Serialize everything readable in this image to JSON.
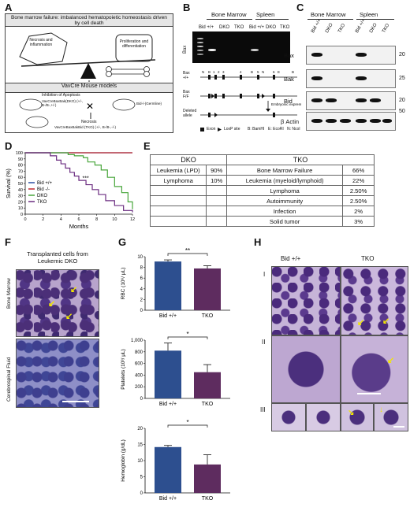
{
  "panels": {
    "A": "A",
    "B": "B",
    "C": "C",
    "D": "D",
    "E": "E",
    "F": "F",
    "G": "G",
    "H": "H"
  },
  "panelA": {
    "header": "Bone marrow failure: imbalanced hematopoietic homeostasis driven by cell death",
    "left_weight": "Necrosis and inflammation",
    "right_weight": "Proliferation and differentiation",
    "models_title": "VavCre Mouse models",
    "inhibition": "Inhibition of Apoptosis",
    "dko_model": "VavCreBaxBak(DKO) (+/-, B-/B-,+/-)",
    "germline": "Bid-/-(Germline)",
    "necrosis": "Necrosis",
    "tko_model": "VavCreBaxBakBid (TKO) (+/-, B-/B-,-/-)"
  },
  "panelB": {
    "bone_marrow": "Bone Marrow",
    "spleen": "Spleen",
    "lanes": [
      "Bid +/+",
      "DKO",
      "TKO",
      "Bid +/+",
      "DKO",
      "TKO"
    ],
    "gel_label": "Bax",
    "row1": "Bax +/+",
    "row2": "Bax F/F",
    "row3": "Deleted allele",
    "site_labels": [
      "N",
      "B",
      "1",
      "2",
      "3",
      "B",
      "4",
      "E",
      "B",
      "5",
      "N",
      "6",
      "E",
      "B"
    ],
    "embryonic": "Embryonic expression of Vav",
    "legend_exon": "Exon",
    "legend_loxp": "LoxP site",
    "legend_b": "B: BamHI",
    "legend_e": "E: EcoRI",
    "legend_n": "N: NcoI"
  },
  "panelC": {
    "bone_marrow": "Bone Marrow",
    "spleen": "Spleen",
    "lanes": [
      "Bid +/+",
      "DKO",
      "TKO",
      "Bid +/+",
      "DKO",
      "TKO"
    ],
    "blots": [
      {
        "name": "Bax",
        "marker": "20"
      },
      {
        "name": "Bak",
        "marker": "25"
      },
      {
        "name": "Bid",
        "marker": "20"
      },
      {
        "name": "β Actin",
        "marker": "50"
      }
    ]
  },
  "chart_data": [
    {
      "panel": "D",
      "type": "line",
      "xlabel": "Months",
      "ylabel": "Survival (%)",
      "xlim": [
        0,
        12
      ],
      "ylim": [
        0,
        100
      ],
      "xticks": [
        "0",
        "2",
        "4",
        "6",
        "8",
        "10",
        "12"
      ],
      "yticks": [
        "0",
        "10",
        "20",
        "30",
        "40",
        "50",
        "60",
        "70",
        "80",
        "90",
        "100"
      ],
      "significance": "***",
      "legend_position": "bottom-left",
      "series": [
        {
          "name": "Bid +/+",
          "color": "#2a4fa3",
          "x": [
            0,
            12
          ],
          "y": [
            100,
            100
          ]
        },
        {
          "name": "Bid -/-",
          "color": "#c0272d",
          "x": [
            0,
            12
          ],
          "y": [
            100,
            100
          ]
        },
        {
          "name": "DKO",
          "color": "#48a63b",
          "x": [
            0,
            4,
            4.8,
            5.5,
            6.5,
            7,
            7.8,
            8.5,
            9.2,
            10,
            10.8,
            11.5,
            12
          ],
          "y": [
            100,
            100,
            97,
            95,
            92,
            85,
            80,
            72,
            60,
            45,
            35,
            20,
            8
          ]
        },
        {
          "name": "TKO",
          "color": "#6b2c80",
          "x": [
            0,
            2.2,
            2.8,
            3.5,
            4,
            4.5,
            5,
            5.5,
            6,
            6.8,
            7.5,
            8.2,
            9,
            10,
            11,
            12
          ],
          "y": [
            100,
            100,
            95,
            88,
            82,
            75,
            68,
            62,
            55,
            48,
            40,
            32,
            22,
            14,
            6,
            3
          ]
        }
      ]
    },
    {
      "panel": "G",
      "type": "bar",
      "categories": [
        "Bid +/+",
        "TKO"
      ],
      "values": [
        9.1,
        7.8
      ],
      "errors": [
        0.3,
        0.5
      ],
      "ylabel": "RBC (10⁶/ μL)",
      "yticks": [
        "0",
        "2",
        "4",
        "6",
        "8",
        "10"
      ],
      "ylim": [
        0,
        10
      ],
      "significance": "**",
      "colors": [
        "#2d4f8f",
        "#5e2c5f"
      ]
    },
    {
      "panel": "G",
      "type": "bar",
      "categories": [
        "Bid +/+",
        "TKO"
      ],
      "values": [
        820,
        450
      ],
      "errors": [
        130,
        130
      ],
      "ylabel": "Platelets (10³/ μL)",
      "yticks": [
        "0",
        "200",
        "400",
        "600",
        "800",
        "1,000"
      ],
      "ylim": [
        0,
        1000
      ],
      "significance": "*",
      "colors": [
        "#2d4f8f",
        "#5e2c5f"
      ]
    },
    {
      "panel": "G",
      "type": "bar",
      "categories": [
        "Bid +/+",
        "TKO"
      ],
      "values": [
        14.2,
        8.8
      ],
      "errors": [
        0.5,
        3
      ],
      "ylabel": "Hemoglobin (g/dL)",
      "yticks": [
        "0",
        "5",
        "10",
        "15",
        "20"
      ],
      "ylim": [
        0,
        20
      ],
      "significance": "*",
      "colors": [
        "#2d4f8f",
        "#5e2c5f"
      ]
    }
  ],
  "panelE": {
    "dko_header": "DKO",
    "tko_header": "TKO",
    "rows": [
      [
        "Leukemia (LPD)",
        "90%",
        "Bone Marrow Failure",
        "66%"
      ],
      [
        "Lymphoma",
        "10%",
        "Leukemia (myeloid/lymphoid)",
        "22%"
      ],
      [
        "",
        "",
        "Lymphoma",
        "2.50%"
      ],
      [
        "",
        "",
        "Autoimmunity",
        "2.50%"
      ],
      [
        "",
        "",
        "Infection",
        "2%"
      ],
      [
        "",
        "",
        "Solid tumor",
        "3%"
      ]
    ]
  },
  "panelF": {
    "title": "Transplanted cells from Leukemic DKO",
    "row1": "Bone Marrow",
    "row2": "Cerebrospinal Fluid"
  },
  "panelH": {
    "col1": "Bid +/+",
    "col2": "TKO",
    "rows": [
      "I",
      "II",
      "III"
    ]
  }
}
